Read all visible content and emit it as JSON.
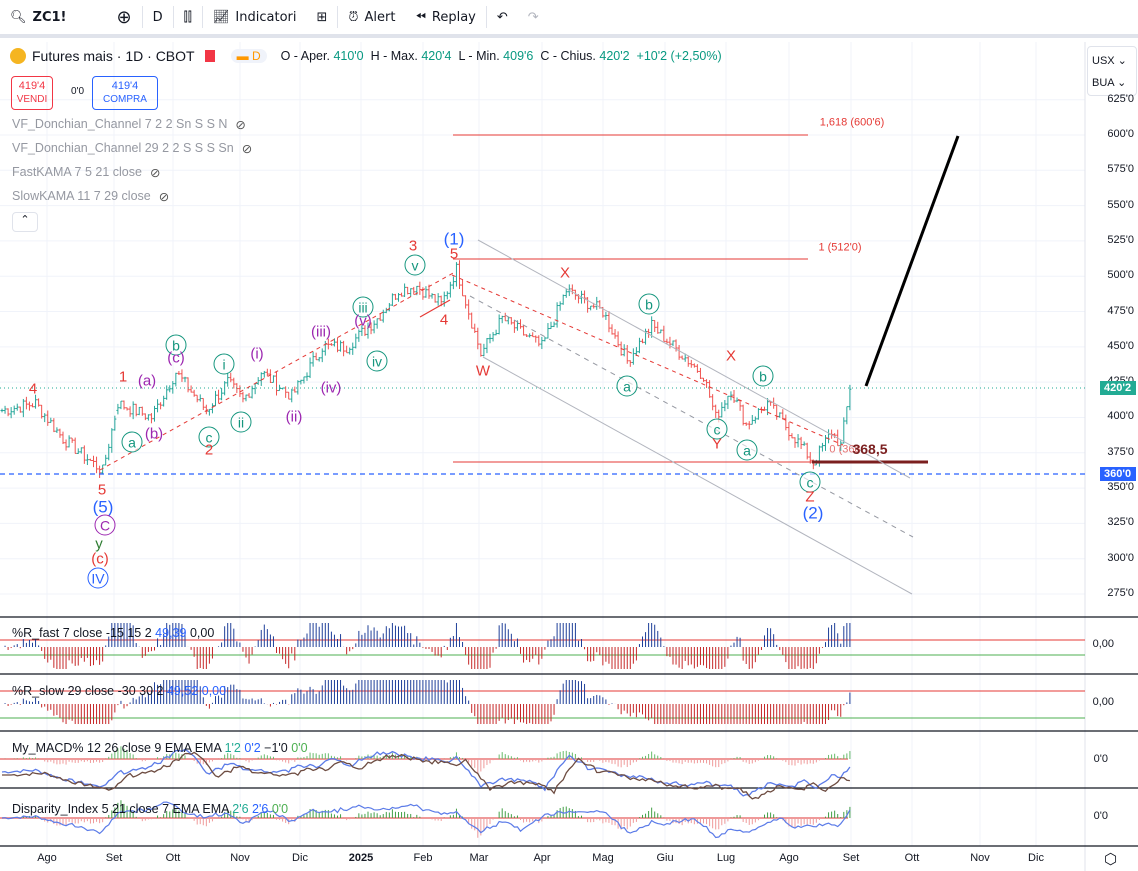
{
  "toolbar": {
    "symbol": "ZC1!",
    "interval": "D",
    "indicators": "Indicatori",
    "alert": "Alert",
    "replay": "Replay"
  },
  "legend": {
    "title": "Futures mais · 1D · CBOT",
    "badge": "D",
    "o_label": "O - Aper.",
    "o": "410'0",
    "h_label": "H - Max.",
    "h": "420'4",
    "l_label": "L - Min.",
    "l": "409'6",
    "c_label": "C - Chius.",
    "c": "420'2",
    "chg": "+10'2 (+2,50%)",
    "sell_price": "419'4",
    "sell_label": "VENDI",
    "spread": "0'0",
    "buy_price": "419'4",
    "buy_label": "COMPRA",
    "indicators": [
      "VF_Donchian_Channel 7 2 2 Sn S S N",
      "VF_Donchian_Channel 29 2 2 S S S Sn",
      "FastKAMA 7 5 21 close",
      "SlowKAMA 11 7 29 close"
    ]
  },
  "axis": {
    "currency": "USX",
    "unit": "BUA",
    "price_ticks": [
      "625'0",
      "600'0",
      "575'0",
      "550'0",
      "525'0",
      "500'0",
      "475'0",
      "450'0",
      "425'0",
      "400'0",
      "375'0",
      "350'0",
      "325'0",
      "300'0",
      "275'0"
    ],
    "last_price": "420'2",
    "line_price": "360'0",
    "time_ticks": [
      "Ago",
      "Set",
      "Ott",
      "Nov",
      "Dic",
      "2025",
      "Feb",
      "Mar",
      "Apr",
      "Mag",
      "Giu",
      "Lug",
      "Ago",
      "Set",
      "Ott",
      "Nov",
      "Dic"
    ]
  },
  "chart_data": {
    "type": "ohlc",
    "price_anchors": [
      [
        0,
        405
      ],
      [
        11,
        410
      ],
      [
        20,
        385
      ],
      [
        33,
        362
      ],
      [
        38,
        410
      ],
      [
        49,
        400
      ],
      [
        57,
        432
      ],
      [
        67,
        405
      ],
      [
        74,
        425
      ],
      [
        79,
        412
      ],
      [
        85,
        432
      ],
      [
        95,
        415
      ],
      [
        105,
        450
      ],
      [
        113,
        450
      ],
      [
        123,
        470
      ],
      [
        130,
        490
      ],
      [
        136,
        493
      ],
      [
        144,
        480
      ],
      [
        149,
        505
      ],
      [
        157,
        445
      ],
      [
        164,
        470
      ],
      [
        177,
        450
      ],
      [
        185,
        490
      ],
      [
        197,
        475
      ],
      [
        205,
        440
      ],
      [
        213,
        465
      ],
      [
        230,
        430
      ],
      [
        234,
        400
      ],
      [
        239,
        420
      ],
      [
        244,
        395
      ],
      [
        251,
        410
      ],
      [
        262,
        380
      ],
      [
        266,
        368
      ],
      [
        272,
        390
      ],
      [
        275,
        380
      ],
      [
        278,
        420
      ]
    ]
  },
  "annotations": {
    "fib_1618": "1,618 (600'6)",
    "fib_1": "1 (512'0)",
    "low_level": "368,5",
    "low_faint": "0 (368",
    "waves": [
      "4",
      "1",
      "(a)",
      "b",
      "(c)",
      "i",
      "(i)",
      "(iii)",
      "iii",
      "(v)",
      "v",
      "3",
      "(1)",
      "5",
      "4",
      "iv",
      "(iv)",
      "(ii)",
      "ii",
      "a",
      "(b)",
      "c",
      "2",
      "5",
      "(5)",
      "C",
      "y",
      "(c)",
      "IV",
      "W",
      "X",
      "b",
      "a",
      "X",
      "b",
      "c",
      "Y",
      "a",
      "c",
      "Z",
      "(2)"
    ]
  },
  "panes": [
    {
      "title": "%R_fast 7 close",
      "params": "-15 15 2",
      "v1": "49,39",
      "v2": "0,00",
      "axis": "0,00"
    },
    {
      "title": "%R_slow 29 close",
      "params": "-30 30 2",
      "v1": "49,52",
      "v2": "0,00",
      "axis": "0,00"
    },
    {
      "title": "My_MACD% 12 26 close 9 EMA EMA",
      "v1": "1'2",
      "v2": "0'2",
      "v3": "−1'0",
      "v4": "0'0",
      "axis": "0'0"
    },
    {
      "title": "Disparity_Index 5 21 close 7 EMA EMA",
      "v1": "2'6",
      "v2": "2'6",
      "v3": "0'0",
      "axis": "0'0"
    }
  ],
  "colors": {
    "up": "#26a69a",
    "down": "#ef5350",
    "red": "#e53935",
    "blue": "#2962ff",
    "teal": "#15967e",
    "purple": "#9c27b0"
  }
}
